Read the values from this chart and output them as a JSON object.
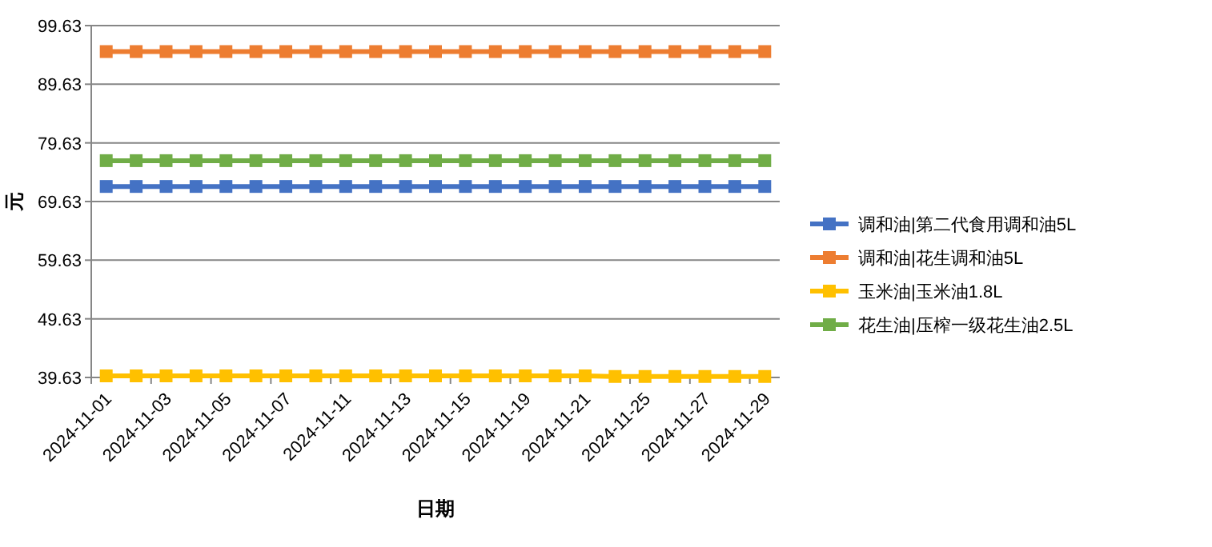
{
  "chart_data": {
    "type": "line",
    "xlabel": "日期",
    "ylabel": "元",
    "categories": [
      "2024-11-01",
      null,
      "2024-11-03",
      null,
      "2024-11-05",
      null,
      "2024-11-07",
      null,
      "2024-11-11",
      null,
      "2024-11-13",
      null,
      "2024-11-15",
      null,
      "2024-11-19",
      null,
      "2024-11-21",
      null,
      "2024-11-25",
      null,
      "2024-11-27",
      null,
      "2024-11-29"
    ],
    "series": [
      {
        "name": "调和油|第二代食用调和油5L",
        "color": "#4472c4",
        "values": [
          72.2,
          72.2,
          72.2,
          72.2,
          72.2,
          72.2,
          72.2,
          72.2,
          72.2,
          72.2,
          72.2,
          72.2,
          72.2,
          72.2,
          72.2,
          72.2,
          72.2,
          72.2,
          72.2,
          72.2,
          72.2,
          72.2,
          72.2
        ]
      },
      {
        "name": "调和油|花生调和油5L",
        "color": "#ed7d31",
        "values": [
          95.2,
          95.2,
          95.2,
          95.2,
          95.2,
          95.2,
          95.2,
          95.2,
          95.2,
          95.2,
          95.2,
          95.2,
          95.2,
          95.2,
          95.2,
          95.2,
          95.2,
          95.2,
          95.2,
          95.2,
          95.2,
          95.2,
          95.2
        ]
      },
      {
        "name": "玉米油|玉米油1.8L",
        "color": "#ffc000",
        "values": [
          39.9,
          39.9,
          39.9,
          39.9,
          39.9,
          39.9,
          39.9,
          39.9,
          39.9,
          39.9,
          39.9,
          39.9,
          39.9,
          39.9,
          39.9,
          39.9,
          39.9,
          39.8,
          39.8,
          39.8,
          39.8,
          39.8,
          39.8
        ]
      },
      {
        "name": "花生油|压榨一级花生油2.5L",
        "color": "#70ad47",
        "values": [
          76.6,
          76.6,
          76.6,
          76.6,
          76.6,
          76.6,
          76.6,
          76.6,
          76.6,
          76.6,
          76.6,
          76.6,
          76.6,
          76.6,
          76.6,
          76.6,
          76.6,
          76.6,
          76.6,
          76.6,
          76.6,
          76.6,
          76.6
        ]
      }
    ],
    "ylim": [
      39.63,
      99.63
    ],
    "yticks": [
      39.63,
      49.63,
      59.63,
      69.63,
      79.63,
      89.63,
      99.63
    ],
    "grid": "y",
    "legend": "right",
    "marker": "square",
    "line_style": "solid"
  }
}
